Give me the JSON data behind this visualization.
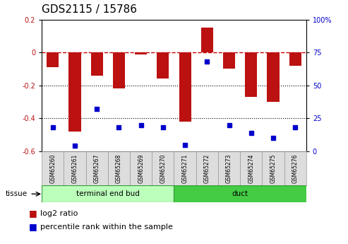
{
  "title": "GDS2115 / 15786",
  "samples": [
    "GSM65260",
    "GSM65261",
    "GSM65267",
    "GSM65268",
    "GSM65269",
    "GSM65270",
    "GSM65271",
    "GSM65272",
    "GSM65273",
    "GSM65274",
    "GSM65275",
    "GSM65276"
  ],
  "log2_ratio": [
    -0.09,
    -0.48,
    -0.14,
    -0.22,
    -0.01,
    -0.16,
    -0.42,
    0.15,
    -0.1,
    -0.27,
    -0.3,
    -0.08
  ],
  "percentile_rank": [
    18,
    4,
    32,
    18,
    20,
    18,
    5,
    68,
    20,
    14,
    10,
    18
  ],
  "tissue_groups": [
    {
      "label": "terminal end bud",
      "start": 0,
      "end": 6,
      "color": "#bbffbb"
    },
    {
      "label": "duct",
      "start": 6,
      "end": 12,
      "color": "#44cc44"
    }
  ],
  "ylim_left": [
    -0.6,
    0.2
  ],
  "ylim_right": [
    0,
    100
  ],
  "bar_color": "#bb1111",
  "dot_color": "#0000cc",
  "zero_line_color": "#cc0000",
  "grid_line_color": "#000000",
  "title_fontsize": 11,
  "tick_fontsize": 7,
  "legend_fontsize": 8,
  "bg_color": "#ffffff"
}
